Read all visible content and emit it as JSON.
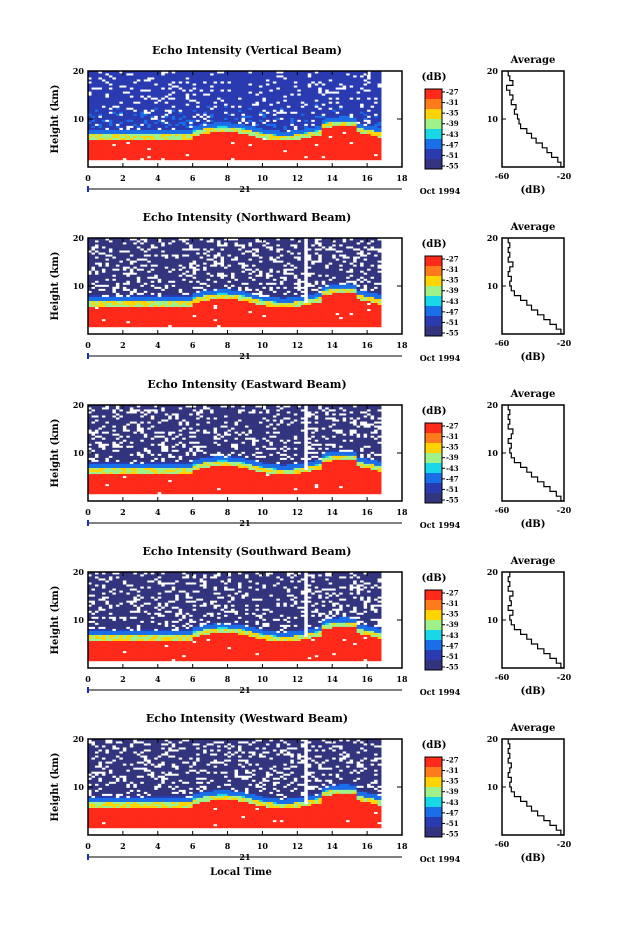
{
  "chart_data": {
    "type": "heatmap",
    "shared": {
      "xlabel": "Local Time",
      "ylabel": "Height (km)",
      "x_ticks": [
        "0",
        "2",
        "4",
        "6",
        "8",
        "10",
        "12",
        "14",
        "16",
        "18"
      ],
      "xlim": [
        0,
        18
      ],
      "y_ticks": [
        "10",
        "20"
      ],
      "ylim": [
        0,
        20
      ],
      "date_marker": "21",
      "date_label": "Oct 1994",
      "colorbar_unit": "(dB)",
      "colorbar_ticks": [
        "-27",
        "-31",
        "-35",
        "-39",
        "-43",
        "-47",
        "-51",
        "-55"
      ],
      "colorbar_colors": [
        "#ff2a1a",
        "#ff7a1a",
        "#ffd400",
        "#9ff28a",
        "#18d8e8",
        "#1a6ee8",
        "#2a3ab0",
        "#33347e"
      ],
      "average_title": "Average",
      "average_xlabel": "(dB)",
      "average_x_ticks": [
        "-60",
        "-20"
      ],
      "average_y_ticks": [
        "10",
        "20"
      ]
    },
    "panels": [
      {
        "title": "Echo Intensity (Vertical Beam)",
        "average": {
          "height": [
            0,
            1,
            2,
            3,
            4,
            5,
            6,
            7,
            8,
            9,
            10,
            11,
            12,
            13,
            14,
            15,
            16,
            17,
            18,
            19,
            20
          ],
          "db": [
            -20,
            -22,
            -24,
            -28,
            -31,
            -34,
            -38,
            -41,
            -44,
            -48,
            -49,
            -50,
            -52,
            -51,
            -54,
            -53,
            -55,
            -57,
            -53,
            -55,
            -56
          ]
        }
      },
      {
        "title": "Echo Intensity (Northward Beam)",
        "average": {
          "height": [
            0,
            1,
            2,
            3,
            4,
            5,
            6,
            7,
            8,
            9,
            10,
            11,
            12,
            13,
            14,
            15,
            16,
            17,
            18,
            19,
            20
          ],
          "db": [
            -20,
            -22,
            -25,
            -29,
            -33,
            -37,
            -41,
            -44,
            -48,
            -52,
            -54,
            -55,
            -54,
            -56,
            -55,
            -53,
            -56,
            -55,
            -56,
            -55,
            -56
          ]
        }
      },
      {
        "title": "Echo Intensity (Eastward Beam)",
        "average": {
          "height": [
            0,
            1,
            2,
            3,
            4,
            5,
            6,
            7,
            8,
            9,
            10,
            11,
            12,
            13,
            14,
            15,
            16,
            17,
            18,
            19,
            20
          ],
          "db": [
            -20,
            -22,
            -25,
            -29,
            -33,
            -37,
            -41,
            -44,
            -48,
            -52,
            -54,
            -55,
            -54,
            -56,
            -54,
            -53,
            -56,
            -55,
            -56,
            -55,
            -56
          ]
        }
      },
      {
        "title": "Echo Intensity (Southward Beam)",
        "average": {
          "height": [
            0,
            1,
            2,
            3,
            4,
            5,
            6,
            7,
            8,
            9,
            10,
            11,
            12,
            13,
            14,
            15,
            16,
            17,
            18,
            19,
            20
          ],
          "db": [
            -20,
            -22,
            -25,
            -29,
            -33,
            -37,
            -41,
            -44,
            -48,
            -52,
            -54,
            -55,
            -53,
            -56,
            -54,
            -55,
            -53,
            -56,
            -55,
            -56,
            -55
          ]
        }
      },
      {
        "title": "Echo Intensity (Westward Beam)",
        "average": {
          "height": [
            0,
            1,
            2,
            3,
            4,
            5,
            6,
            7,
            8,
            9,
            10,
            11,
            12,
            13,
            14,
            15,
            16,
            17,
            18,
            19,
            20
          ],
          "db": [
            -20,
            -22,
            -25,
            -29,
            -33,
            -37,
            -41,
            -44,
            -48,
            -52,
            -54,
            -55,
            -54,
            -56,
            -55,
            -54,
            -56,
            -55,
            -56,
            -55,
            -56
          ]
        }
      }
    ]
  }
}
